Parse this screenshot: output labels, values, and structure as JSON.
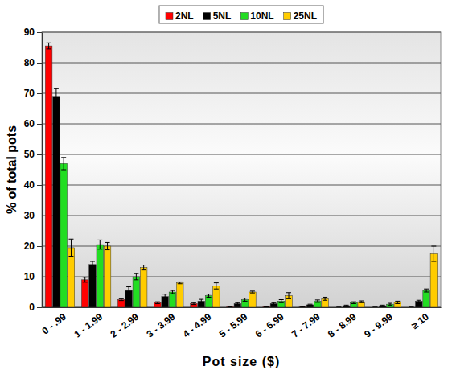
{
  "chart_data": {
    "type": "bar",
    "x_label": "Pot size ($)",
    "y_label": "% of total pots",
    "categories": [
      "0 - .99",
      "1 - 1.99",
      "2 - 2.99",
      "3 - 3.99",
      "4 - 4.99",
      "5 - 5.99",
      "6 - 6.99",
      "7 - 7.99",
      "8 - 8.99",
      "9 - 9.99",
      "≥ 10"
    ],
    "series": [
      {
        "name": "2NL",
        "color": "#ff0000",
        "values": [
          85.5,
          9,
          2.5,
          1.5,
          1.2,
          0.2,
          0.2,
          0.1,
          0,
          0,
          0
        ],
        "errors": [
          1,
          0.8,
          0.3,
          0.3,
          0.3,
          0.1,
          0.1,
          0.1,
          0,
          0,
          0
        ]
      },
      {
        "name": "5NL",
        "color": "#000000",
        "values": [
          69,
          14,
          5.5,
          3.5,
          2,
          1.2,
          1.2,
          0.8,
          0.5,
          0.5,
          2
        ],
        "errors": [
          2.5,
          1,
          1.2,
          0.8,
          0.6,
          0.3,
          0.3,
          0.2,
          0.2,
          0.2,
          0.3
        ]
      },
      {
        "name": "10NL",
        "color": "#22dd22",
        "values": [
          47,
          20.5,
          10,
          5,
          3.8,
          2.5,
          2,
          2,
          1.5,
          1,
          5.5
        ],
        "errors": [
          2,
          1.5,
          1,
          0.5,
          0.5,
          0.5,
          0.5,
          0.4,
          0.3,
          0.3,
          0.5
        ]
      },
      {
        "name": "25NL",
        "color": "#ffcc00",
        "values": [
          19.5,
          20,
          13,
          8,
          7,
          5,
          3.8,
          2.8,
          1.8,
          1.6,
          17.5
        ],
        "errors": [
          2.8,
          1.2,
          0.8,
          0.3,
          1,
          0.3,
          1,
          0.5,
          0.3,
          0.4,
          2.5
        ]
      }
    ],
    "ylim": [
      0,
      90
    ],
    "yticks": [
      0,
      10,
      20,
      30,
      40,
      50,
      60,
      70,
      80,
      90
    ],
    "grid": true,
    "legend": "top"
  }
}
